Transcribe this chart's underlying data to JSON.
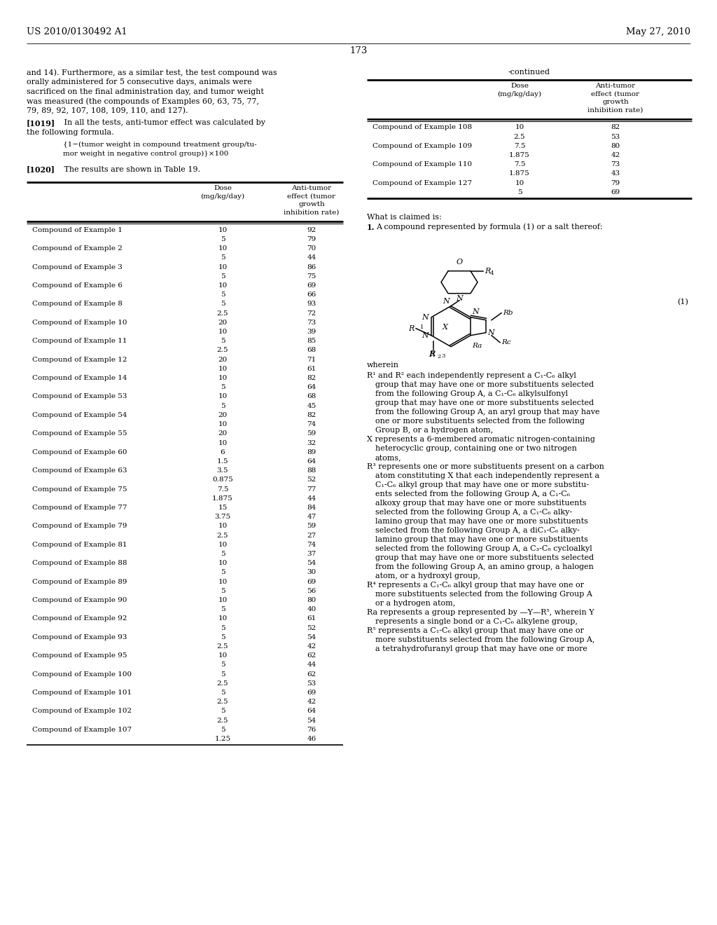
{
  "header_left": "US 2010/0130492 A1",
  "header_right": "May 27, 2010",
  "page_number": "173",
  "bg_color": "#ffffff",
  "text_color": "#000000",
  "left_intro_lines": [
    "and 14). Furthermore, as a similar test, the test compound was",
    "orally administered for 5 consecutive days, animals were",
    "sacrificed on the final administration day, and tumor weight",
    "was measured (the compounds of Examples 60, 63, 75, 77,",
    "79, 89, 92, 107, 108, 109, 110, and 127)."
  ],
  "formula_lines": [
    "{1−(tumor weight in compound treatment group/tu-",
    "mor weight in negative control group)}×100"
  ],
  "table_rows_left": [
    [
      "Compound of Example 1",
      "10",
      "92"
    ],
    [
      "",
      "5",
      "79"
    ],
    [
      "Compound of Example 2",
      "10",
      "70"
    ],
    [
      "",
      "5",
      "44"
    ],
    [
      "Compound of Example 3",
      "10",
      "86"
    ],
    [
      "",
      "5",
      "75"
    ],
    [
      "Compound of Example 6",
      "10",
      "69"
    ],
    [
      "",
      "5",
      "66"
    ],
    [
      "Compound of Example 8",
      "5",
      "93"
    ],
    [
      "",
      "2.5",
      "72"
    ],
    [
      "Compound of Example 10",
      "20",
      "73"
    ],
    [
      "",
      "10",
      "39"
    ],
    [
      "Compound of Example 11",
      "5",
      "85"
    ],
    [
      "",
      "2.5",
      "68"
    ],
    [
      "Compound of Example 12",
      "20",
      "71"
    ],
    [
      "",
      "10",
      "61"
    ],
    [
      "Compound of Example 14",
      "10",
      "82"
    ],
    [
      "",
      "5",
      "64"
    ],
    [
      "Compound of Example 53",
      "10",
      "68"
    ],
    [
      "",
      "5",
      "45"
    ],
    [
      "Compound of Example 54",
      "20",
      "82"
    ],
    [
      "",
      "10",
      "74"
    ],
    [
      "Compound of Example 55",
      "20",
      "59"
    ],
    [
      "",
      "10",
      "32"
    ],
    [
      "Compound of Example 60",
      "6",
      "89"
    ],
    [
      "",
      "1.5",
      "64"
    ],
    [
      "Compound of Example 63",
      "3.5",
      "88"
    ],
    [
      "",
      "0.875",
      "52"
    ],
    [
      "Compound of Example 75",
      "7.5",
      "77"
    ],
    [
      "",
      "1.875",
      "44"
    ],
    [
      "Compound of Example 77",
      "15",
      "84"
    ],
    [
      "",
      "3.75",
      "47"
    ],
    [
      "Compound of Example 79",
      "10",
      "59"
    ],
    [
      "",
      "2.5",
      "27"
    ],
    [
      "Compound of Example 81",
      "10",
      "74"
    ],
    [
      "",
      "5",
      "37"
    ],
    [
      "Compound of Example 88",
      "10",
      "54"
    ],
    [
      "",
      "5",
      "30"
    ],
    [
      "Compound of Example 89",
      "10",
      "69"
    ],
    [
      "",
      "5",
      "56"
    ],
    [
      "Compound of Example 90",
      "10",
      "80"
    ],
    [
      "",
      "5",
      "40"
    ],
    [
      "Compound of Example 92",
      "10",
      "61"
    ],
    [
      "",
      "5",
      "52"
    ],
    [
      "Compound of Example 93",
      "5",
      "54"
    ],
    [
      "",
      "2.5",
      "42"
    ],
    [
      "Compound of Example 95",
      "10",
      "62"
    ],
    [
      "",
      "5",
      "44"
    ],
    [
      "Compound of Example 100",
      "5",
      "62"
    ],
    [
      "",
      "2.5",
      "53"
    ],
    [
      "Compound of Example 101",
      "5",
      "69"
    ],
    [
      "",
      "2.5",
      "42"
    ],
    [
      "Compound of Example 102",
      "5",
      "64"
    ],
    [
      "",
      "2.5",
      "54"
    ],
    [
      "Compound of Example 107",
      "5",
      "76"
    ],
    [
      "",
      "1.25",
      "46"
    ]
  ],
  "table_rows_right": [
    [
      "Compound of Example 108",
      "10",
      "82"
    ],
    [
      "",
      "2.5",
      "53"
    ],
    [
      "Compound of Example 109",
      "7.5",
      "80"
    ],
    [
      "",
      "1.875",
      "42"
    ],
    [
      "Compound of Example 110",
      "7.5",
      "73"
    ],
    [
      "",
      "1.875",
      "43"
    ],
    [
      "Compound of Example 127",
      "10",
      "79"
    ],
    [
      "",
      "5",
      "69"
    ]
  ],
  "claim_lines_top": [
    "What is claimed is:",
    "1. A compound represented by formula (1) or a salt thereof:"
  ],
  "wherein_label": "wherein",
  "claim_body_lines": [
    "R¹ and R² each independently represent a C₁-C₆ alkyl",
    "    group that may have one or more substituents selected",
    "    from the following Group A, a C₁-C₆ alkylsulfonyl",
    "    group that may have one or more substituents selected",
    "    from the following Group A, an aryl group that may have",
    "    one or more substituents selected from the following",
    "    Group B, or a hydrogen atom,",
    "X represents a 6-membered aromatic nitrogen-containing",
    "    heterocyclic group, containing one or two nitrogen",
    "    atoms,",
    "R³ represents one or more substituents present on a carbon",
    "    atom constituting X that each independently represent a",
    "    C₁-C₆ alkyl group that may have one or more substitu-",
    "    ents selected from the following Group A, a C₁-C₆",
    "    alkoxy group that may have one or more substituents",
    "    selected from the following Group A, a C₁-C₆ alky-",
    "    lamino group that may have one or more substituents",
    "    selected from the following Group A, a diC₁-C₆ alky-",
    "    lamino group that may have one or more substituents",
    "    selected from the following Group A, a C₃-C₈ cycloalkyl",
    "    group that may have one or more substituents selected",
    "    from the following Group A, an amino group, a halogen",
    "    atom, or a hydroxyl group,",
    "R⁴ represents a C₁-C₆ alkyl group that may have one or",
    "    more substituents selected from the following Group A",
    "    or a hydrogen atom,",
    "Ra represents a group represented by —Y—R⁵, wherein Y",
    "    represents a single bond or a C₁-C₆ alkylene group,",
    "R⁵ represents a C₁-C₆ alkyl group that may have one or",
    "    more substituents selected from the following Group A,",
    "    a tetrahydrofuranyl group that may have one or more"
  ]
}
